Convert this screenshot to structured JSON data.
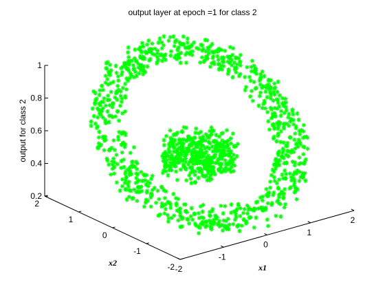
{
  "chart_data": {
    "type": "scatter3d",
    "title": "output layer at epoch =1 for class 2",
    "xlabel": "x1",
    "ylabel": "x2",
    "zlabel": "output for class 2",
    "xlim": [
      -2,
      2
    ],
    "ylim": [
      -2,
      2
    ],
    "zlim": [
      0.2,
      1
    ],
    "x_ticks": [
      "-2",
      "-1",
      "0",
      "1",
      "2"
    ],
    "y_ticks": [
      "-2",
      "-1",
      "0",
      "1",
      "2"
    ],
    "z_ticks": [
      "0.2",
      "0.4",
      "0.6",
      "0.8",
      "1"
    ],
    "marker": "*",
    "marker_color": "#00ff00",
    "grid": false,
    "legend": "none",
    "series": [
      {
        "points_description_inner_disk": {
          "radius_max": 0.7,
          "z_range": [
            0.4,
            0.6
          ],
          "count": 450
        },
        "points_description_outer_ring": {
          "radius_range": [
            1.35,
            2.0
          ],
          "z_range": [
            0.25,
            1.0
          ],
          "count": 900
        }
      }
    ]
  }
}
